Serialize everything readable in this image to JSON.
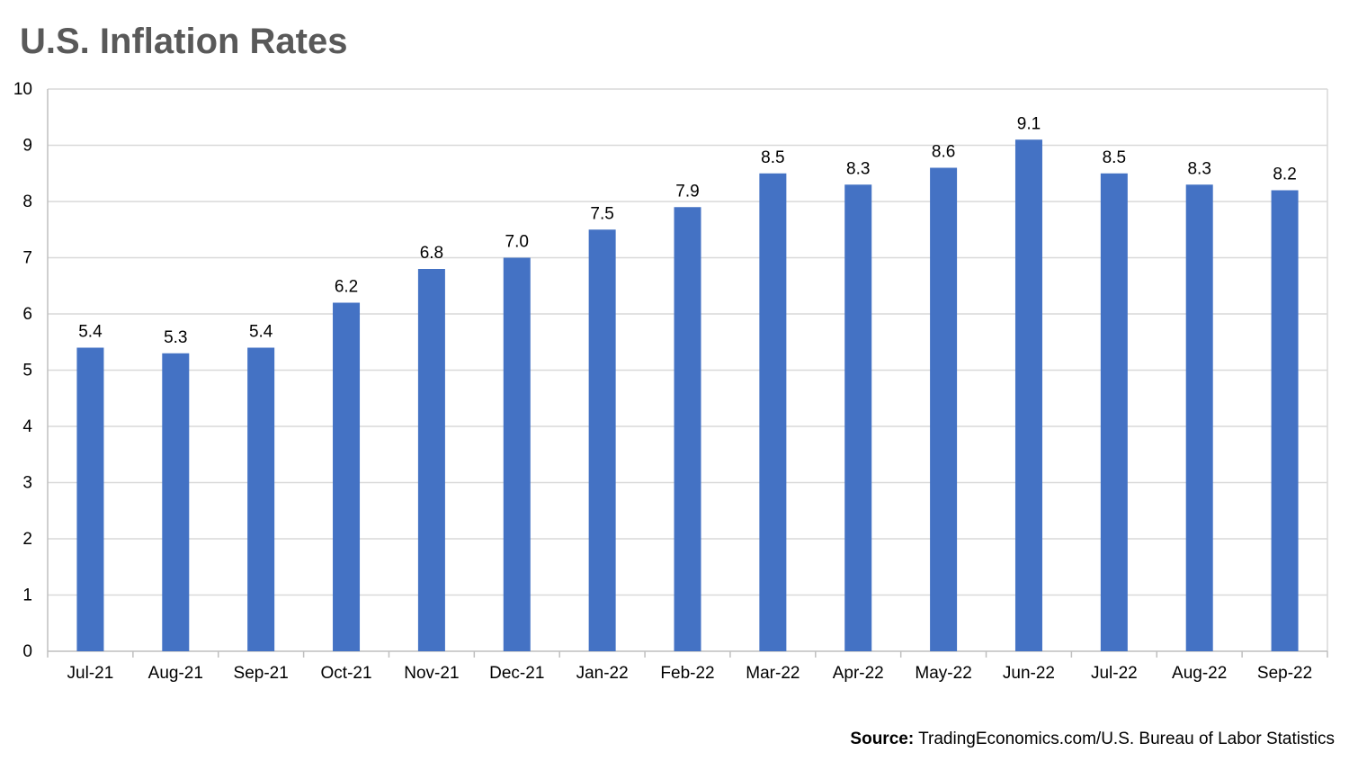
{
  "chart_data": {
    "type": "bar",
    "title": "U.S. Inflation Rates",
    "xlabel": "",
    "ylabel": "",
    "categories": [
      "Jul-21",
      "Aug-21",
      "Sep-21",
      "Oct-21",
      "Nov-21",
      "Dec-21",
      "Jan-22",
      "Feb-22",
      "Mar-22",
      "Apr-22",
      "May-22",
      "Jun-22",
      "Jul-22",
      "Aug-22",
      "Sep-22"
    ],
    "values": [
      5.4,
      5.3,
      5.4,
      6.2,
      6.8,
      7.0,
      7.5,
      7.9,
      8.5,
      8.3,
      8.6,
      9.1,
      8.5,
      8.3,
      8.2
    ],
    "data_labels": [
      "5.4",
      "5.3",
      "5.4",
      "6.2",
      "6.8",
      "7.0",
      "7.5",
      "7.9",
      "8.5",
      "8.3",
      "8.6",
      "9.1",
      "8.5",
      "8.3",
      "8.2"
    ],
    "ylim": [
      0,
      10
    ],
    "yticks": [
      0,
      1,
      2,
      3,
      4,
      5,
      6,
      7,
      8,
      9,
      10
    ],
    "grid": true,
    "legend": "none",
    "bar_color": "#4472C4"
  },
  "source": {
    "label": "Source:",
    "text": " TradingEconomics.com/U.S. Bureau of Labor Statistics"
  }
}
